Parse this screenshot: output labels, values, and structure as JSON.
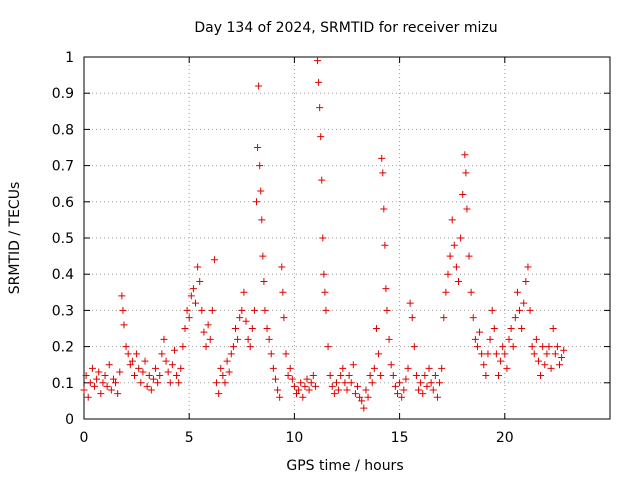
{
  "chart_data": {
    "type": "scatter",
    "title": "Day 134 of 2024, SRMTID for receiver mizu",
    "xlabel": "GPS time / hours",
    "ylabel": "SRMTID / TECUs",
    "xlim": [
      0,
      25
    ],
    "ylim": [
      0,
      1
    ],
    "grid": true,
    "marker": "+",
    "marker_color": "#e00000",
    "x_ticks": [
      0,
      5,
      10,
      15,
      20
    ],
    "x_tick_labels": [
      "0",
      "5",
      "10",
      "15",
      "20"
    ],
    "y_ticks": [
      0,
      0.1,
      0.2,
      0.3,
      0.4,
      0.5,
      0.6,
      0.7,
      0.8,
      0.9,
      1
    ],
    "y_tick_labels": [
      "0",
      "0.1",
      "0.2",
      "0.3",
      "0.4",
      "0.5",
      "0.6",
      "0.7",
      "0.8",
      "0.9",
      "1"
    ],
    "series": [
      {
        "name": "SRMTID",
        "points": [
          [
            0.0,
            0.08
          ],
          [
            0.1,
            0.12
          ],
          [
            0.2,
            0.06
          ],
          [
            0.3,
            0.1
          ],
          [
            0.4,
            0.14
          ],
          [
            0.5,
            0.09
          ],
          [
            0.6,
            0.11
          ],
          [
            0.7,
            0.13
          ],
          [
            0.8,
            0.07
          ],
          [
            0.9,
            0.1
          ],
          [
            1.0,
            0.12
          ],
          [
            1.1,
            0.09
          ],
          [
            1.2,
            0.15
          ],
          [
            1.3,
            0.08
          ],
          [
            1.4,
            0.11
          ],
          [
            1.5,
            0.1
          ],
          [
            1.6,
            0.07
          ],
          [
            1.7,
            0.13
          ],
          [
            1.8,
            0.34
          ],
          [
            1.85,
            0.3
          ],
          [
            1.9,
            0.26
          ],
          [
            2.0,
            0.2
          ],
          [
            2.1,
            0.18
          ],
          [
            2.2,
            0.15
          ],
          [
            2.3,
            0.16
          ],
          [
            2.4,
            0.12
          ],
          [
            2.5,
            0.18
          ],
          [
            2.6,
            0.14
          ],
          [
            2.7,
            0.1
          ],
          [
            2.8,
            0.13
          ],
          [
            2.9,
            0.16
          ],
          [
            3.0,
            0.09
          ],
          [
            3.1,
            0.12
          ],
          [
            3.2,
            0.08
          ],
          [
            3.3,
            0.11
          ],
          [
            3.4,
            0.14
          ],
          [
            3.5,
            0.1
          ],
          [
            3.6,
            0.12
          ],
          [
            3.7,
            0.18
          ],
          [
            3.8,
            0.22
          ],
          [
            3.9,
            0.16
          ],
          [
            4.0,
            0.13
          ],
          [
            4.1,
            0.1
          ],
          [
            4.2,
            0.15
          ],
          [
            4.3,
            0.19
          ],
          [
            4.4,
            0.12
          ],
          [
            4.5,
            0.1
          ],
          [
            4.6,
            0.14
          ],
          [
            4.7,
            0.2
          ],
          [
            4.8,
            0.25
          ],
          [
            4.9,
            0.3
          ],
          [
            5.0,
            0.28
          ],
          [
            5.1,
            0.34
          ],
          [
            5.2,
            0.36
          ],
          [
            5.3,
            0.32
          ],
          [
            5.4,
            0.42
          ],
          [
            5.5,
            0.38
          ],
          [
            5.6,
            0.3
          ],
          [
            5.7,
            0.24
          ],
          [
            5.8,
            0.2
          ],
          [
            5.9,
            0.26
          ],
          [
            6.0,
            0.22
          ],
          [
            6.1,
            0.3
          ],
          [
            6.2,
            0.44
          ],
          [
            6.3,
            0.1
          ],
          [
            6.4,
            0.07
          ],
          [
            6.5,
            0.14
          ],
          [
            6.6,
            0.12
          ],
          [
            6.7,
            0.1
          ],
          [
            6.8,
            0.16
          ],
          [
            6.9,
            0.13
          ],
          [
            7.0,
            0.18
          ],
          [
            7.1,
            0.2
          ],
          [
            7.2,
            0.25
          ],
          [
            7.3,
            0.22
          ],
          [
            7.4,
            0.28
          ],
          [
            7.5,
            0.3
          ],
          [
            7.6,
            0.35
          ],
          [
            7.7,
            0.27
          ],
          [
            7.8,
            0.22
          ],
          [
            7.9,
            0.2
          ],
          [
            8.0,
            0.25
          ],
          [
            8.1,
            0.3
          ],
          [
            8.2,
            0.6
          ],
          [
            8.25,
            0.75
          ],
          [
            8.3,
            0.92
          ],
          [
            8.35,
            0.7
          ],
          [
            8.4,
            0.63
          ],
          [
            8.45,
            0.55
          ],
          [
            8.5,
            0.45
          ],
          [
            8.55,
            0.38
          ],
          [
            8.6,
            0.3
          ],
          [
            8.7,
            0.25
          ],
          [
            8.8,
            0.22
          ],
          [
            8.9,
            0.18
          ],
          [
            9.0,
            0.14
          ],
          [
            9.1,
            0.11
          ],
          [
            9.2,
            0.08
          ],
          [
            9.3,
            0.06
          ],
          [
            9.4,
            0.42
          ],
          [
            9.45,
            0.35
          ],
          [
            9.5,
            0.28
          ],
          [
            9.6,
            0.18
          ],
          [
            9.7,
            0.12
          ],
          [
            9.8,
            0.14
          ],
          [
            9.9,
            0.11
          ],
          [
            10.0,
            0.09
          ],
          [
            10.1,
            0.07
          ],
          [
            10.2,
            0.08
          ],
          [
            10.3,
            0.1
          ],
          [
            10.4,
            0.06
          ],
          [
            10.5,
            0.09
          ],
          [
            10.6,
            0.11
          ],
          [
            10.7,
            0.08
          ],
          [
            10.8,
            0.1
          ],
          [
            10.9,
            0.12
          ],
          [
            11.0,
            0.09
          ],
          [
            11.1,
            0.99
          ],
          [
            11.15,
            0.93
          ],
          [
            11.2,
            0.86
          ],
          [
            11.25,
            0.78
          ],
          [
            11.3,
            0.66
          ],
          [
            11.35,
            0.5
          ],
          [
            11.4,
            0.4
          ],
          [
            11.45,
            0.35
          ],
          [
            11.5,
            0.3
          ],
          [
            11.6,
            0.2
          ],
          [
            11.7,
            0.12
          ],
          [
            11.8,
            0.09
          ],
          [
            11.9,
            0.07
          ],
          [
            12.0,
            0.1
          ],
          [
            12.1,
            0.08
          ],
          [
            12.2,
            0.12
          ],
          [
            12.3,
            0.14
          ],
          [
            12.4,
            0.1
          ],
          [
            12.5,
            0.08
          ],
          [
            12.6,
            0.12
          ],
          [
            12.7,
            0.1
          ],
          [
            12.8,
            0.15
          ],
          [
            12.9,
            0.07
          ],
          [
            13.0,
            0.09
          ],
          [
            13.1,
            0.06
          ],
          [
            13.2,
            0.05
          ],
          [
            13.3,
            0.03
          ],
          [
            13.4,
            0.08
          ],
          [
            13.5,
            0.06
          ],
          [
            13.6,
            0.12
          ],
          [
            13.7,
            0.1
          ],
          [
            13.8,
            0.14
          ],
          [
            13.9,
            0.25
          ],
          [
            14.0,
            0.18
          ],
          [
            14.1,
            0.12
          ],
          [
            14.15,
            0.72
          ],
          [
            14.2,
            0.68
          ],
          [
            14.25,
            0.58
          ],
          [
            14.3,
            0.48
          ],
          [
            14.35,
            0.36
          ],
          [
            14.4,
            0.3
          ],
          [
            14.5,
            0.22
          ],
          [
            14.6,
            0.15
          ],
          [
            14.7,
            0.12
          ],
          [
            14.8,
            0.09
          ],
          [
            14.9,
            0.07
          ],
          [
            15.0,
            0.1
          ],
          [
            15.1,
            0.06
          ],
          [
            15.2,
            0.08
          ],
          [
            15.3,
            0.11
          ],
          [
            15.4,
            0.14
          ],
          [
            15.5,
            0.32
          ],
          [
            15.6,
            0.28
          ],
          [
            15.7,
            0.2
          ],
          [
            15.8,
            0.12
          ],
          [
            15.9,
            0.08
          ],
          [
            16.0,
            0.1
          ],
          [
            16.1,
            0.07
          ],
          [
            16.2,
            0.12
          ],
          [
            16.3,
            0.09
          ],
          [
            16.4,
            0.14
          ],
          [
            16.5,
            0.1
          ],
          [
            16.6,
            0.08
          ],
          [
            16.7,
            0.12
          ],
          [
            16.8,
            0.06
          ],
          [
            16.9,
            0.1
          ],
          [
            17.0,
            0.14
          ],
          [
            17.1,
            0.28
          ],
          [
            17.2,
            0.35
          ],
          [
            17.3,
            0.4
          ],
          [
            17.4,
            0.45
          ],
          [
            17.5,
            0.55
          ],
          [
            17.6,
            0.48
          ],
          [
            17.7,
            0.42
          ],
          [
            17.8,
            0.38
          ],
          [
            17.9,
            0.5
          ],
          [
            18.0,
            0.62
          ],
          [
            18.1,
            0.73
          ],
          [
            18.15,
            0.68
          ],
          [
            18.2,
            0.58
          ],
          [
            18.3,
            0.45
          ],
          [
            18.4,
            0.35
          ],
          [
            18.5,
            0.28
          ],
          [
            18.6,
            0.22
          ],
          [
            18.7,
            0.2
          ],
          [
            18.8,
            0.24
          ],
          [
            18.9,
            0.18
          ],
          [
            19.0,
            0.15
          ],
          [
            19.1,
            0.12
          ],
          [
            19.2,
            0.18
          ],
          [
            19.3,
            0.22
          ],
          [
            19.4,
            0.3
          ],
          [
            19.5,
            0.25
          ],
          [
            19.6,
            0.18
          ],
          [
            19.7,
            0.12
          ],
          [
            19.8,
            0.16
          ],
          [
            19.9,
            0.2
          ],
          [
            20.0,
            0.18
          ],
          [
            20.1,
            0.14
          ],
          [
            20.2,
            0.22
          ],
          [
            20.3,
            0.25
          ],
          [
            20.4,
            0.2
          ],
          [
            20.5,
            0.28
          ],
          [
            20.6,
            0.35
          ],
          [
            20.7,
            0.3
          ],
          [
            20.8,
            0.25
          ],
          [
            20.9,
            0.32
          ],
          [
            21.0,
            0.38
          ],
          [
            21.1,
            0.42
          ],
          [
            21.2,
            0.3
          ],
          [
            21.3,
            0.2
          ],
          [
            21.4,
            0.18
          ],
          [
            21.5,
            0.22
          ],
          [
            21.6,
            0.16
          ],
          [
            21.7,
            0.12
          ],
          [
            21.8,
            0.2
          ],
          [
            21.9,
            0.15
          ],
          [
            22.0,
            0.18
          ],
          [
            22.1,
            0.2
          ],
          [
            22.2,
            0.14
          ],
          [
            22.3,
            0.25
          ],
          [
            22.4,
            0.18
          ],
          [
            22.5,
            0.2
          ],
          [
            22.6,
            0.15
          ],
          [
            22.7,
            0.17
          ],
          [
            22.8,
            0.19
          ]
        ]
      }
    ]
  }
}
